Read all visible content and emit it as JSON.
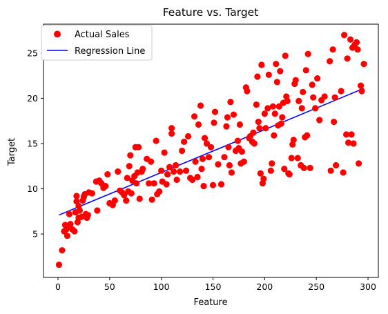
{
  "chart_data": {
    "type": "scatter",
    "title": "Feature vs. Target",
    "xlabel": "Feature",
    "ylabel": "Target",
    "xlim": [
      -14,
      310
    ],
    "ylim": [
      0.2,
      28.2
    ],
    "xticks": [
      0,
      50,
      100,
      150,
      200,
      250,
      300
    ],
    "yticks": [
      5,
      10,
      15,
      20,
      25
    ],
    "grid": false,
    "legend_position": "top-left",
    "colors": {
      "points": "#ff0000",
      "line": "#0000ff",
      "axes": "#000000"
    },
    "series": [
      {
        "name": "Actual Sales",
        "kind": "scatter",
        "points": [
          [
            1,
            1.6
          ],
          [
            4,
            3.2
          ],
          [
            6,
            5.3
          ],
          [
            7,
            6.0
          ],
          [
            8,
            5.5
          ],
          [
            9,
            4.8
          ],
          [
            10,
            5.8
          ],
          [
            11,
            7.2
          ],
          [
            12,
            6.1
          ],
          [
            14,
            5.5
          ],
          [
            16,
            5.3
          ],
          [
            17,
            7.4
          ],
          [
            18,
            8.6
          ],
          [
            18,
            9.2
          ],
          [
            19,
            6.3
          ],
          [
            20,
            6.8
          ],
          [
            20,
            8.1
          ],
          [
            21,
            7.6
          ],
          [
            23,
            6.9
          ],
          [
            24,
            8.7
          ],
          [
            25,
            9.1
          ],
          [
            26,
            9.4
          ],
          [
            27,
            7.2
          ],
          [
            28,
            6.8
          ],
          [
            29,
            7.1
          ],
          [
            30,
            9.6
          ],
          [
            33,
            9.5
          ],
          [
            37,
            10.8
          ],
          [
            38,
            7.6
          ],
          [
            40,
            10.9
          ],
          [
            42,
            10.6
          ],
          [
            44,
            10.1
          ],
          [
            46,
            10.3
          ],
          [
            48,
            11.6
          ],
          [
            50,
            8.4
          ],
          [
            53,
            8.2
          ],
          [
            55,
            8.7
          ],
          [
            58,
            11.9
          ],
          [
            60,
            9.8
          ],
          [
            62,
            9.6
          ],
          [
            64,
            9.3
          ],
          [
            66,
            8.7
          ],
          [
            67,
            11.2
          ],
          [
            68,
            9.7
          ],
          [
            69,
            12.5
          ],
          [
            70,
            13.7
          ],
          [
            71,
            9.5
          ],
          [
            72,
            10.9
          ],
          [
            74,
            11.4
          ],
          [
            75,
            14.6
          ],
          [
            76,
            10.6
          ],
          [
            77,
            11.8
          ],
          [
            78,
            14.6
          ],
          [
            79,
            8.9
          ],
          [
            81,
            11.9
          ],
          [
            82,
            12.2
          ],
          [
            86,
            13.3
          ],
          [
            88,
            10.6
          ],
          [
            90,
            13.0
          ],
          [
            91,
            8.8
          ],
          [
            93,
            10.6
          ],
          [
            95,
            15.3
          ],
          [
            96,
            9.4
          ],
          [
            98,
            9.7
          ],
          [
            100,
            12.0
          ],
          [
            101,
            10.8
          ],
          [
            103,
            14.0
          ],
          [
            105,
            10.5
          ],
          [
            106,
            11.6
          ],
          [
            108,
            12.4
          ],
          [
            110,
            16.1
          ],
          [
            110,
            16.7
          ],
          [
            112,
            11.9
          ],
          [
            114,
            12.6
          ],
          [
            115,
            11.0
          ],
          [
            118,
            11.9
          ],
          [
            120,
            14.2
          ],
          [
            122,
            15.2
          ],
          [
            124,
            12.0
          ],
          [
            126,
            15.8
          ],
          [
            128,
            11.2
          ],
          [
            130,
            11.0
          ],
          [
            132,
            18.0
          ],
          [
            133,
            13.0
          ],
          [
            135,
            11.3
          ],
          [
            136,
            17.1
          ],
          [
            138,
            19.2
          ],
          [
            139,
            12.2
          ],
          [
            140,
            13.3
          ],
          [
            141,
            10.3
          ],
          [
            142,
            15.6
          ],
          [
            144,
            15.0
          ],
          [
            146,
            13.5
          ],
          [
            148,
            14.6
          ],
          [
            150,
            10.4
          ],
          [
            151,
            17.3
          ],
          [
            152,
            18.5
          ],
          [
            155,
            12.7
          ],
          [
            158,
            10.5
          ],
          [
            161,
            13.5
          ],
          [
            163,
            16.9
          ],
          [
            164,
            17.9
          ],
          [
            165,
            14.6
          ],
          [
            166,
            12.6
          ],
          [
            167,
            19.6
          ],
          [
            168,
            11.8
          ],
          [
            170,
            18.2
          ],
          [
            172,
            14.2
          ],
          [
            174,
            15.3
          ],
          [
            175,
            14.5
          ],
          [
            176,
            17.1
          ],
          [
            177,
            12.8
          ],
          [
            178,
            14.1
          ],
          [
            180,
            13.0
          ],
          [
            182,
            21.2
          ],
          [
            183,
            20.8
          ],
          [
            185,
            15.6
          ],
          [
            186,
            15.8
          ],
          [
            188,
            15.2
          ],
          [
            189,
            16.2
          ],
          [
            190,
            15.0
          ],
          [
            192,
            19.3
          ],
          [
            193,
            22.4
          ],
          [
            194,
            17.4
          ],
          [
            195,
            16.7
          ],
          [
            196,
            11.7
          ],
          [
            197,
            23.7
          ],
          [
            198,
            10.6
          ],
          [
            199,
            11.1
          ],
          [
            200,
            18.3
          ],
          [
            201,
            16.7
          ],
          [
            203,
            18.9
          ],
          [
            204,
            22.6
          ],
          [
            206,
            12.0
          ],
          [
            207,
            12.8
          ],
          [
            208,
            19.1
          ],
          [
            209,
            15.9
          ],
          [
            210,
            18.3
          ],
          [
            211,
            23.8
          ],
          [
            212,
            21.8
          ],
          [
            213,
            17.0
          ],
          [
            214,
            19.1
          ],
          [
            215,
            23.0
          ],
          [
            216,
            17.2
          ],
          [
            217,
            17.9
          ],
          [
            218,
            19.5
          ],
          [
            219,
            12.2
          ],
          [
            220,
            24.7
          ],
          [
            221,
            20.2
          ],
          [
            222,
            19.7
          ],
          [
            223,
            11.7
          ],
          [
            224,
            11.6
          ],
          [
            226,
            13.4
          ],
          [
            227,
            14.9
          ],
          [
            228,
            15.4
          ],
          [
            229,
            21.6
          ],
          [
            230,
            22.0
          ],
          [
            232,
            13.4
          ],
          [
            233,
            19.7
          ],
          [
            235,
            12.6
          ],
          [
            236,
            18.9
          ],
          [
            237,
            20.7
          ],
          [
            238,
            12.3
          ],
          [
            239,
            15.7
          ],
          [
            240,
            23.1
          ],
          [
            241,
            15.9
          ],
          [
            242,
            24.9
          ],
          [
            244,
            12.3
          ],
          [
            246,
            21.5
          ],
          [
            247,
            20.1
          ],
          [
            249,
            18.9
          ],
          [
            251,
            22.2
          ],
          [
            253,
            17.6
          ],
          [
            255,
            19.8
          ],
          [
            258,
            20.2
          ],
          [
            263,
            24.1
          ],
          [
            264,
            12.0
          ],
          [
            266,
            25.4
          ],
          [
            267,
            17.4
          ],
          [
            268,
            20.1
          ],
          [
            269,
            12.6
          ],
          [
            274,
            20.8
          ],
          [
            276,
            11.8
          ],
          [
            277,
            27.0
          ],
          [
            279,
            16.0
          ],
          [
            280,
            24.4
          ],
          [
            281,
            15.1
          ],
          [
            283,
            26.5
          ],
          [
            284,
            16.0
          ],
          [
            285,
            25.6
          ],
          [
            286,
            15.0
          ],
          [
            287,
            25.9
          ],
          [
            289,
            26.2
          ],
          [
            290,
            25.4
          ],
          [
            291,
            12.8
          ],
          [
            293,
            21.4
          ],
          [
            294,
            20.8
          ],
          [
            296,
            23.8
          ]
        ]
      },
      {
        "name": "Regression Line",
        "kind": "line",
        "x": [
          1,
          296
        ],
        "y": [
          7.1,
          21.1
        ]
      }
    ]
  }
}
